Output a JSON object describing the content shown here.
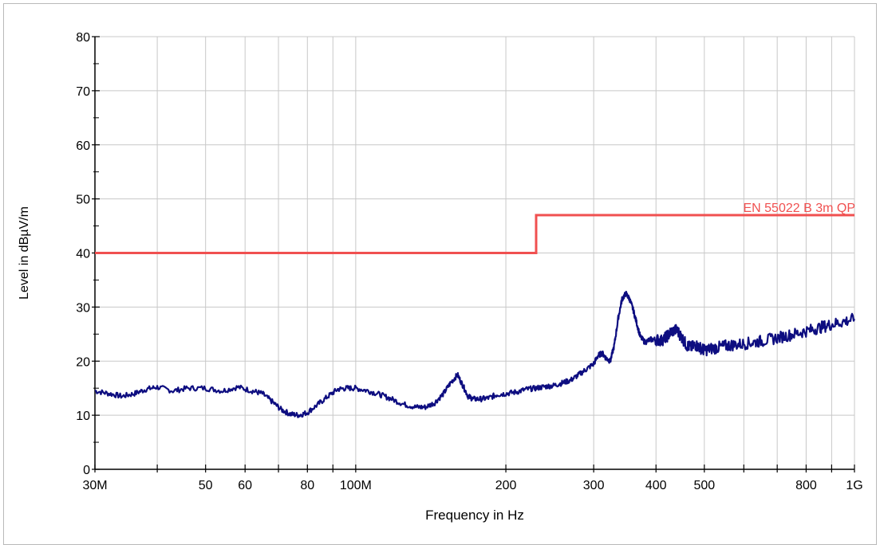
{
  "chart_data": {
    "type": "line",
    "ylabel": "Level in dBµV/m",
    "xlabel": "Frequency in Hz",
    "x_scale": "log",
    "xlim": [
      30,
      1000
    ],
    "ylim": [
      0,
      80
    ],
    "y_ticks": [
      0,
      10,
      20,
      30,
      40,
      50,
      60,
      70,
      80
    ],
    "y_minor_ticks": [
      5,
      15,
      25,
      35,
      45,
      55,
      65,
      75
    ],
    "x_ticks": [
      {
        "value": 30,
        "label": "30M"
      },
      {
        "value": 40,
        "label": ""
      },
      {
        "value": 50,
        "label": "50"
      },
      {
        "value": 60,
        "label": "60"
      },
      {
        "value": 70,
        "label": ""
      },
      {
        "value": 80,
        "label": "80"
      },
      {
        "value": 90,
        "label": ""
      },
      {
        "value": 100,
        "label": "100M"
      },
      {
        "value": 200,
        "label": "200"
      },
      {
        "value": 300,
        "label": "300"
      },
      {
        "value": 400,
        "label": "400"
      },
      {
        "value": 500,
        "label": "500"
      },
      {
        "value": 600,
        "label": ""
      },
      {
        "value": 700,
        "label": ""
      },
      {
        "value": 800,
        "label": "800"
      },
      {
        "value": 900,
        "label": ""
      },
      {
        "value": 1000,
        "label": "1G"
      }
    ],
    "grid": true,
    "series": [
      {
        "name": "EN 55022 B 3m QP",
        "color": "#f05050",
        "step": true,
        "x": [
          30,
          230,
          230,
          1000
        ],
        "y": [
          40,
          40,
          47,
          47
        ]
      },
      {
        "name": "",
        "color": "#0d0d80",
        "x": [
          30,
          32,
          34,
          36,
          38,
          40,
          43,
          46,
          50,
          54,
          58,
          62,
          65,
          68,
          71,
          74,
          77,
          80,
          84,
          88,
          92,
          96,
          100,
          106,
          112,
          118,
          125,
          132,
          138,
          144,
          150,
          155,
          160,
          164,
          168,
          172,
          178,
          185,
          192,
          200,
          210,
          220,
          230,
          240,
          250,
          260,
          270,
          280,
          290,
          300,
          306,
          312,
          318,
          324,
          330,
          336,
          342,
          348,
          354,
          360,
          366,
          372,
          380,
          390,
          400,
          410,
          420,
          430,
          440,
          450,
          460,
          470,
          480,
          490,
          500,
          515,
          530,
          550,
          570,
          600,
          630,
          660,
          700,
          740,
          780,
          820,
          860,
          900,
          950,
          1000
        ],
        "y": [
          14.5,
          14.0,
          13.5,
          14.0,
          14.8,
          15.2,
          14.5,
          15.0,
          15.0,
          14.5,
          15.2,
          14.5,
          14.0,
          12.5,
          11.0,
          10.2,
          10.0,
          10.5,
          12.0,
          13.5,
          14.8,
          15.0,
          15.0,
          14.5,
          13.8,
          13.0,
          12.0,
          11.5,
          11.5,
          12.3,
          14.0,
          16.0,
          17.5,
          15.5,
          13.5,
          13.0,
          13.0,
          13.2,
          13.8,
          14.0,
          14.3,
          14.8,
          15.0,
          15.3,
          15.5,
          16.0,
          16.5,
          17.5,
          18.5,
          19.5,
          21.0,
          21.5,
          20.5,
          20.0,
          23.0,
          28.0,
          31.5,
          32.5,
          31.5,
          29.5,
          27.0,
          24.5,
          23.5,
          24.0,
          24.0,
          23.8,
          24.5,
          25.5,
          25.8,
          24.5,
          23.0,
          22.5,
          23.0,
          22.5,
          22.0,
          22.3,
          22.5,
          22.8,
          23.0,
          23.2,
          23.5,
          23.8,
          24.3,
          24.8,
          25.3,
          25.8,
          26.3,
          26.8,
          27.3,
          27.8
        ]
      }
    ]
  }
}
